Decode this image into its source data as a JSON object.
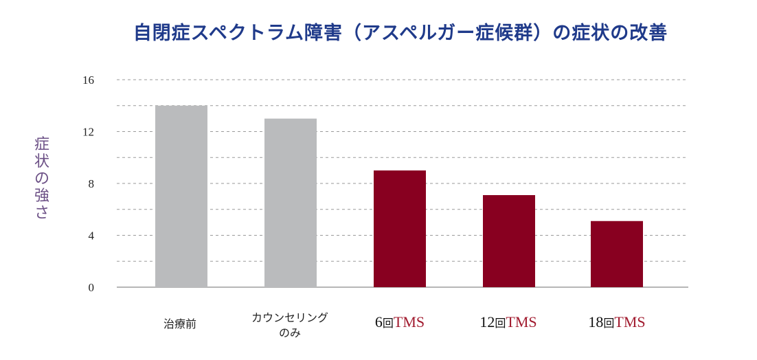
{
  "chart_data": {
    "type": "bar",
    "title": "自閉症スペクトラム障害（アスペルガー症候群）の症状の改善",
    "ylabel": "症状の強さ",
    "xlabel": "",
    "ylim": [
      0,
      16
    ],
    "yticks": [
      0,
      4,
      8,
      12,
      16
    ],
    "grid": true,
    "categories": [
      "治療前",
      "カウンセリングのみ",
      "6回TMS",
      "12回TMS",
      "18回TMS"
    ],
    "values": [
      14,
      13,
      9,
      7.1,
      5.1
    ],
    "bar_colors": [
      "#babbbd",
      "#babbbd",
      "#880020",
      "#880020",
      "#880020"
    ]
  },
  "labels": {
    "cat0": "治療前",
    "cat1": "カウンセリング\nのみ",
    "cat2_num": "6",
    "cat2_kai": "回",
    "cat2_tms": "TMS",
    "cat3_num": "12",
    "cat3_kai": "回",
    "cat3_tms": "TMS",
    "cat4_num": "18",
    "cat4_kai": "回",
    "cat4_tms": "TMS"
  }
}
